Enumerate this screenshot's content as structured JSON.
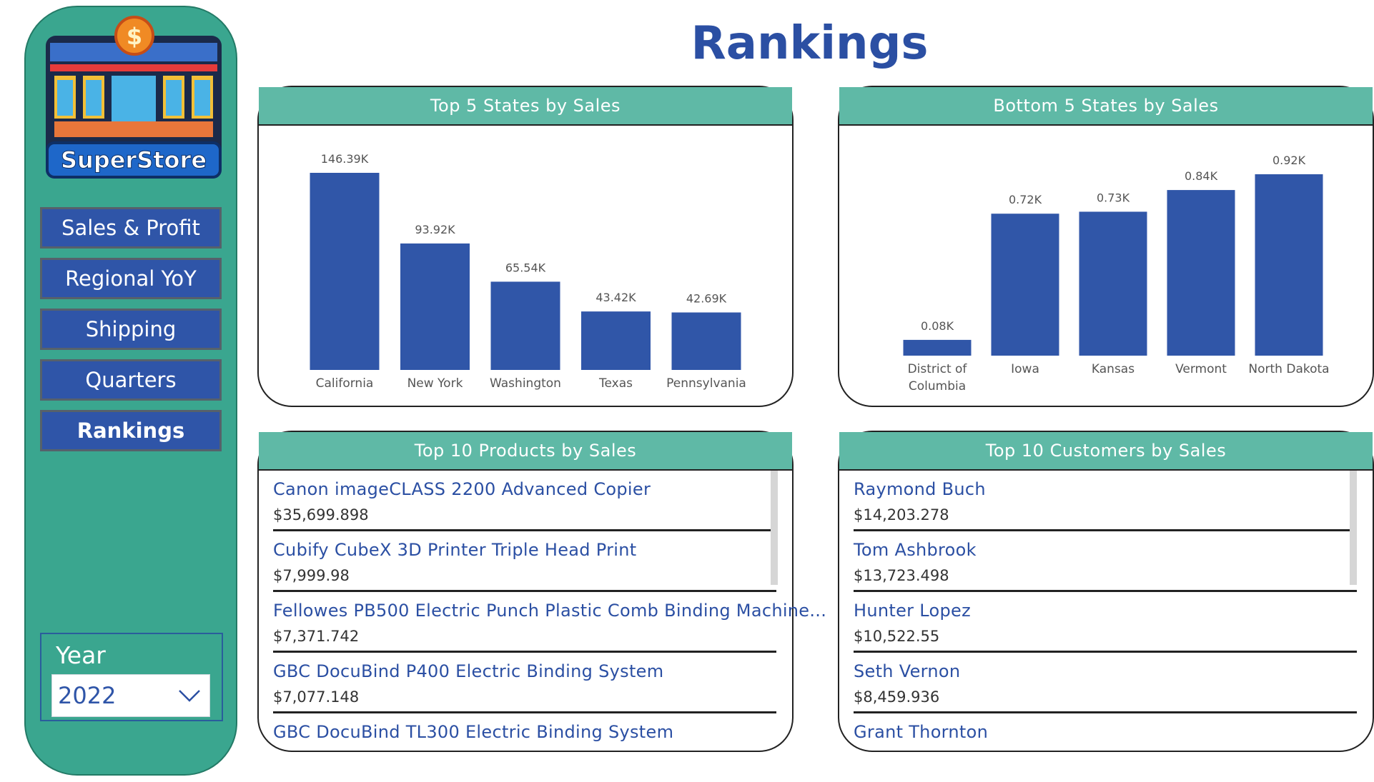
{
  "page_title": "Rankings",
  "sidebar": {
    "logo_text": "SuperStore",
    "nav": [
      {
        "label": "Sales & Profit"
      },
      {
        "label": "Regional YoY"
      },
      {
        "label": "Shipping"
      },
      {
        "label": "Quarters"
      },
      {
        "label": "Rankings",
        "active": true
      }
    ],
    "year_filter": {
      "label": "Year",
      "selected": "2022"
    }
  },
  "colors": {
    "bar": "#3056a8",
    "header": "#5fb9a6",
    "sidebar": "#3aa68f",
    "title": "#2b4fa3"
  },
  "top_states": {
    "title": "Top 5 States by Sales",
    "chart_data": {
      "type": "bar",
      "categories": [
        "California",
        "New York",
        "Washington",
        "Texas",
        "Pennsylvania"
      ],
      "values": [
        146.39,
        93.92,
        65.54,
        43.42,
        42.69
      ],
      "value_labels": [
        "146.39K",
        "93.92K",
        "65.54K",
        "43.42K",
        "42.69K"
      ],
      "unit": "K"
    }
  },
  "bottom_states": {
    "title": "Bottom 5 States by Sales",
    "chart_data": {
      "type": "bar",
      "categories": [
        "District of Columbia",
        "Iowa",
        "Kansas",
        "Vermont",
        "North Dakota"
      ],
      "values": [
        0.08,
        0.72,
        0.73,
        0.84,
        0.92
      ],
      "value_labels": [
        "0.08K",
        "0.72K",
        "0.73K",
        "0.84K",
        "0.92K"
      ],
      "unit": "K"
    }
  },
  "top_products": {
    "title": "Top 10 Products by Sales",
    "items": [
      {
        "name": "Canon imageCLASS 2200 Advanced Copier",
        "value": "$35,699.898"
      },
      {
        "name": "Cubify CubeX 3D Printer Triple Head Print",
        "value": "$7,999.98"
      },
      {
        "name": "Fellowes PB500 Electric Punch Plastic Comb Binding Machine...",
        "value": "$7,371.742"
      },
      {
        "name": "GBC DocuBind P400 Electric Binding System",
        "value": "$7,077.148"
      },
      {
        "name": "GBC DocuBind TL300 Electric Binding System",
        "value": ""
      }
    ]
  },
  "top_customers": {
    "title": "Top 10 Customers by Sales",
    "items": [
      {
        "name": "Raymond Buch",
        "value": "$14,203.278"
      },
      {
        "name": "Tom Ashbrook",
        "value": "$13,723.498"
      },
      {
        "name": "Hunter Lopez",
        "value": "$10,522.55"
      },
      {
        "name": "Seth Vernon",
        "value": "$8,459.936"
      },
      {
        "name": "Grant Thornton",
        "value": ""
      }
    ]
  }
}
